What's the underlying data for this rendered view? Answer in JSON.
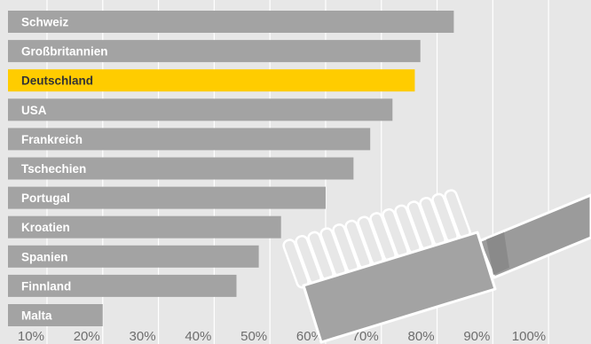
{
  "chart_data": {
    "type": "bar",
    "orientation": "horizontal",
    "categories": [
      "Schweiz",
      "Großbritannien",
      "Deutschland",
      "USA",
      "Frankreich",
      "Tschechien",
      "Portugal",
      "Kroatien",
      "Spanien",
      "Finnland",
      "Malta"
    ],
    "values": [
      83,
      77,
      76,
      72,
      68,
      65,
      60,
      52,
      48,
      44,
      20
    ],
    "highlight": "Deutschland",
    "xticks": [
      "10%",
      "20%",
      "30%",
      "40%",
      "50%",
      "60%",
      "70%",
      "80%",
      "90%",
      "100%"
    ],
    "xlim": [
      3,
      106
    ],
    "grid": true,
    "decoration": "toothbrush-icon",
    "colors": {
      "background": "#e7e7e7",
      "bar": "#a3a3a3",
      "highlight": "#ffcc00",
      "grid": "#ffffff",
      "tick_text": "#6e6e6e"
    }
  }
}
